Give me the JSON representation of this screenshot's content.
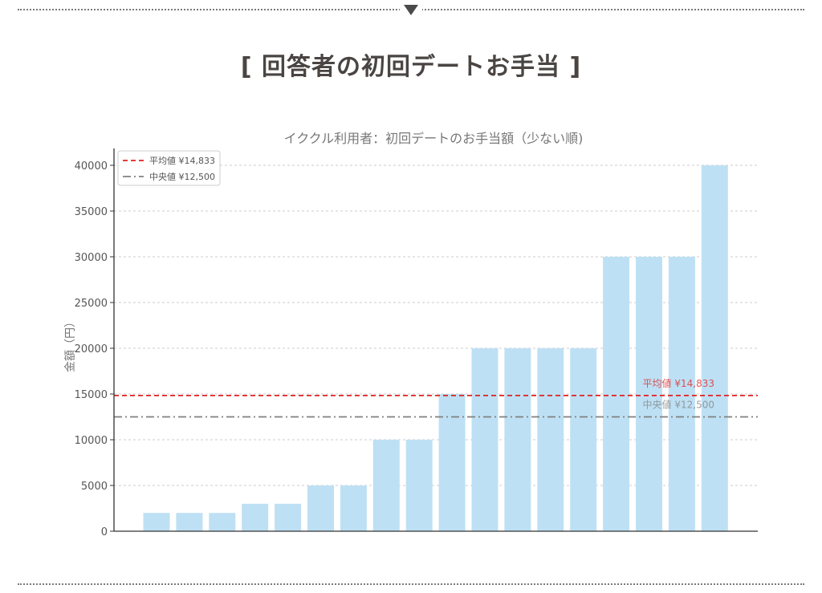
{
  "section": {
    "heading": "[ 回答者の初回デートお手当 ]"
  },
  "chart_data": {
    "type": "bar",
    "title": "イククル利用者：初回デートのお手当額（少ない順)",
    "xlabel": "",
    "ylabel": "金額（円）",
    "ylim": [
      0,
      40000
    ],
    "yticks": [
      0,
      5000,
      10000,
      15000,
      20000,
      25000,
      30000,
      35000,
      40000
    ],
    "grid": "horizontal dashed",
    "values": [
      2000,
      2000,
      2000,
      3000,
      3000,
      5000,
      5000,
      10000,
      10000,
      15000,
      20000,
      20000,
      20000,
      20000,
      30000,
      30000,
      30000,
      40000
    ],
    "bar_color": "#bee0f4",
    "reference_lines": [
      {
        "label": "平均値 ¥14,833",
        "value": 14833,
        "color": "#e02020",
        "style": "dashed"
      },
      {
        "label": "中央値 ¥12,500",
        "value": 12500,
        "color": "#808080",
        "style": "dashdot"
      }
    ],
    "legend": {
      "position": "top-left",
      "entries": [
        "平均値 ¥14,833",
        "中央値 ¥12,500"
      ]
    },
    "annotations": [
      "平均値 ¥14,833",
      "中央値 ¥12,500"
    ]
  }
}
